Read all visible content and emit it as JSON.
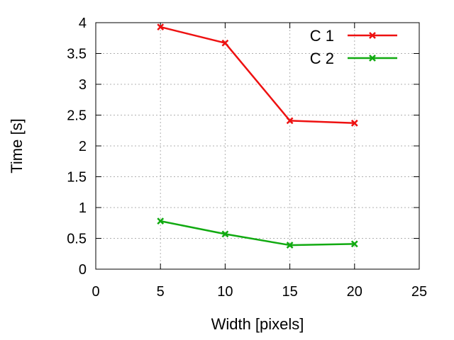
{
  "chart_data": {
    "type": "line",
    "xlabel": "Width [pixels]",
    "ylabel": "Time [s]",
    "xlim": [
      0,
      25
    ],
    "ylim": [
      0,
      4
    ],
    "x_ticks": [
      0,
      5,
      10,
      15,
      20,
      25
    ],
    "y_ticks": [
      0,
      0.5,
      1,
      1.5,
      2,
      2.5,
      3,
      3.5,
      4
    ],
    "grid": true,
    "legend_position": "top-right",
    "marker": "x",
    "series": [
      {
        "name": "C 1",
        "color": "#ee1111",
        "x": [
          5,
          10,
          15,
          20
        ],
        "y": [
          3.93,
          3.67,
          2.41,
          2.37
        ]
      },
      {
        "name": "C 2",
        "color": "#11aa11",
        "x": [
          5,
          10,
          15,
          20
        ],
        "y": [
          0.78,
          0.57,
          0.39,
          0.41
        ]
      }
    ]
  }
}
